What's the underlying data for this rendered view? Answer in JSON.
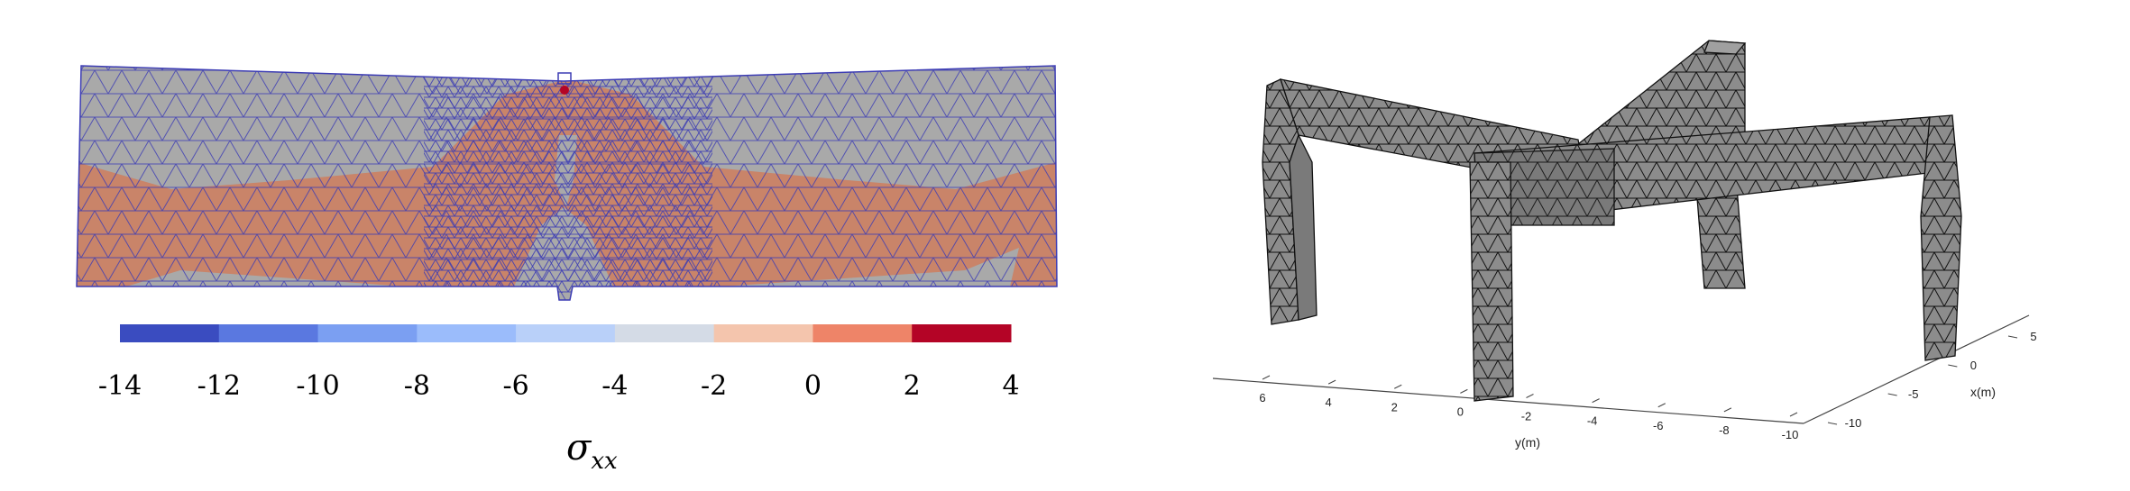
{
  "left_panel": {
    "symbol": "σ",
    "subscript": "xx",
    "colorbar": {
      "ticks": [
        "-14",
        "-12",
        "-10",
        "-8",
        "-6",
        "-4",
        "-2",
        "0",
        "2",
        "4"
      ],
      "colors": [
        "#3a4cc0",
        "#5a78e0",
        "#7b9ff2",
        "#9bbcfb",
        "#b9d0f9",
        "#d4dbe6",
        "#f4c5ad",
        "#ee8468",
        "#b40426"
      ]
    },
    "colors": {
      "beam_gray": "#a9a9a9",
      "tension_orange": "#c98469",
      "mesh_line": "#3c3cb4",
      "peak_red": "#b40426"
    }
  },
  "right_panel": {
    "axes": {
      "y_ticks": [
        "6",
        "4",
        "2",
        "0",
        "-2",
        "-4",
        "-6",
        "-8",
        "-10"
      ],
      "y_label": "y(m)",
      "x_ticks": [
        "5",
        "0",
        "-5",
        "-10"
      ],
      "x_label": "x(m)"
    },
    "colors": {
      "frame_fill": "#8c8c8c",
      "edge": "#111111"
    }
  }
}
